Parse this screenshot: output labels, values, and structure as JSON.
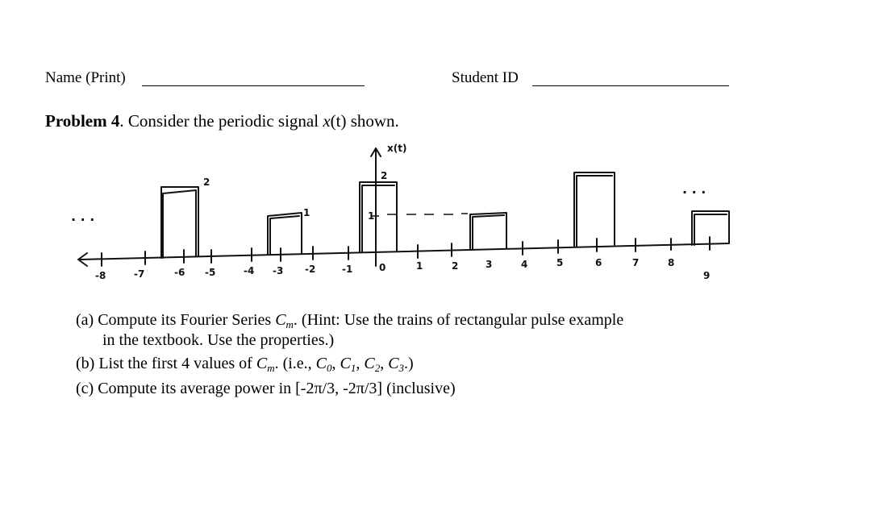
{
  "header": {
    "name_label": "Name (Print)",
    "student_id_label": "Student ID"
  },
  "problem": {
    "number_label": "Problem 4",
    "statement": ". Consider the periodic signal ",
    "signal": "x",
    "signal_arg": "(t)",
    "statement_end": " shown."
  },
  "figure": {
    "y_label": "x(t)",
    "left_dots": ". . .",
    "right_dots": ". . .",
    "x_tick_labels": [
      "-8",
      "-7",
      "-6",
      "-5",
      "-4",
      "-3",
      "-2",
      "-1",
      "0",
      "1",
      "2",
      "3",
      "4",
      "5",
      "6",
      "7",
      "8",
      "9"
    ],
    "pulse_labels": [
      "2",
      "1",
      "2",
      "1"
    ],
    "dashed_ref": "- - - -"
  },
  "parts": {
    "a": {
      "prefix": "(a) Compute its Fourier Series ",
      "sym": "C",
      "sub": "m",
      "suffix": ". (Hint: Use the trains of rectangular pulse example",
      "line2": "in the textbook. Use the properties.)"
    },
    "b": {
      "prefix": "(b) List the first 4 values of ",
      "sym": "C",
      "sub": "m",
      "mid": ". (i.e., ",
      "c0": "C",
      "c0s": "0",
      "sep1": ", ",
      "c1": "C",
      "c1s": "1",
      "sep2": ", ",
      "c2": "C",
      "c2s": "2",
      "sep3": ", ",
      "c3": "C",
      "c3s": "3",
      "end": ".)"
    },
    "c": {
      "text": "(c) Compute its average power in [-2π/3, -2π/3] (inclusive)"
    }
  }
}
